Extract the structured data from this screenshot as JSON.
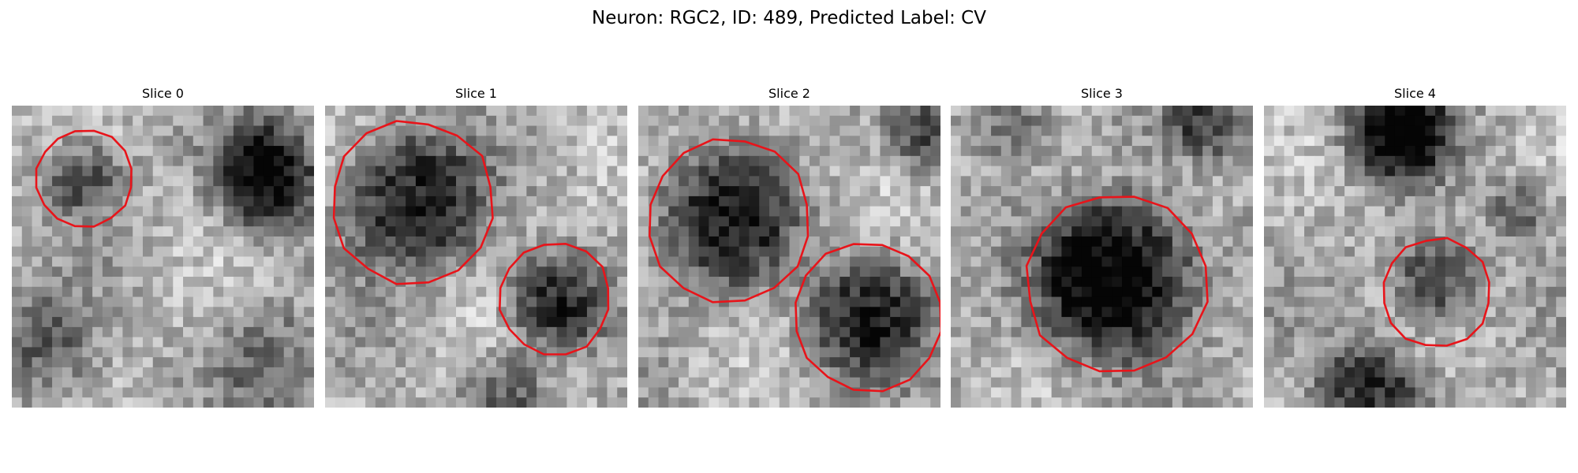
{
  "title": "Neuron: RGC2, ID: 489, Predicted Label: CV",
  "panels": [
    {
      "title": "Slice 0"
    },
    {
      "title": "Slice 1"
    },
    {
      "title": "Slice 2"
    },
    {
      "title": "Slice 3"
    },
    {
      "title": "Slice 4"
    }
  ]
}
